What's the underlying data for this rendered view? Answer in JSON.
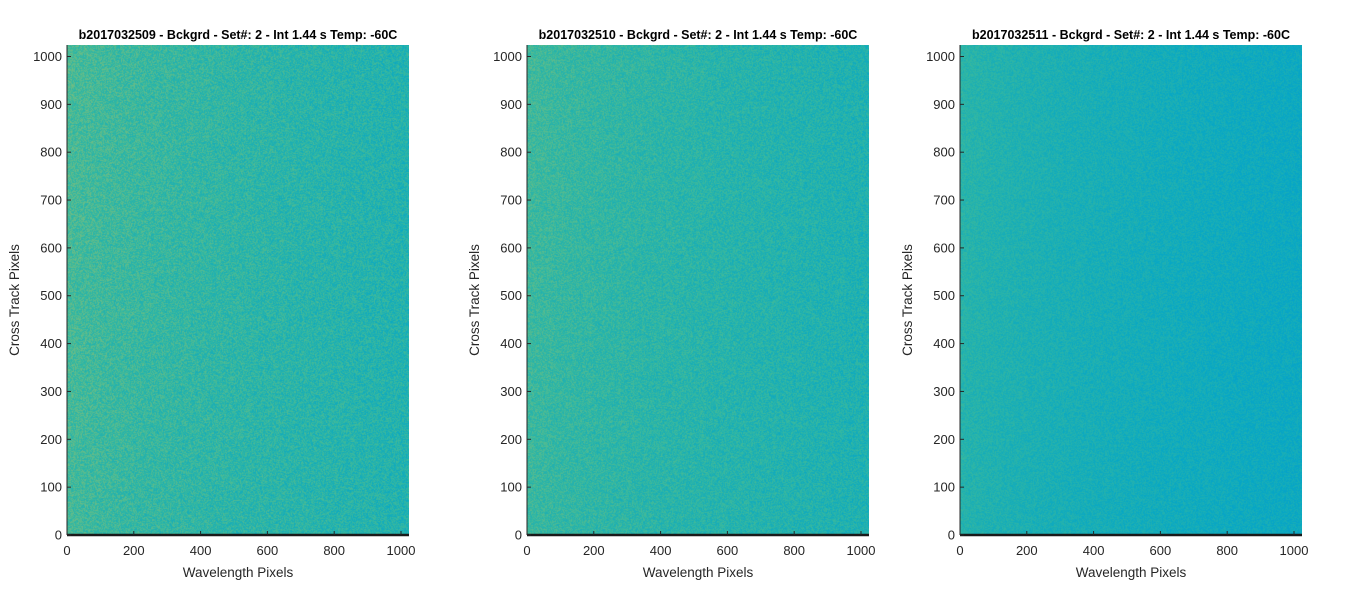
{
  "chart_data": [
    {
      "type": "heatmap",
      "title": "b2017032509 - Bckgrd - Set#: 2 - Int 1.44 s Temp: -60C",
      "xlabel": "Wavelength Pixels",
      "ylabel": "Cross Track Pixels",
      "xlim": [
        0,
        1024
      ],
      "ylim": [
        0,
        1024
      ],
      "xticks": [
        0,
        200,
        400,
        600,
        800,
        1000
      ],
      "yticks": [
        0,
        100,
        200,
        300,
        400,
        500,
        600,
        700,
        800,
        900,
        1000
      ],
      "colormap": "parula",
      "intensity_gradient": {
        "left": 0.62,
        "right": 0.54,
        "noise": 0.08
      },
      "grid": false
    },
    {
      "type": "heatmap",
      "title": "b2017032510 - Bckgrd - Set#: 2 - Int 1.44 s Temp: -60C",
      "xlabel": "Wavelength Pixels",
      "ylabel": "Cross Track Pixels",
      "xlim": [
        0,
        1024
      ],
      "ylim": [
        0,
        1024
      ],
      "xticks": [
        0,
        200,
        400,
        600,
        800,
        1000
      ],
      "yticks": [
        0,
        100,
        200,
        300,
        400,
        500,
        600,
        700,
        800,
        900,
        1000
      ],
      "colormap": "parula",
      "intensity_gradient": {
        "left": 0.6,
        "right": 0.53,
        "noise": 0.07
      },
      "grid": false
    },
    {
      "type": "heatmap",
      "title": "b2017032511 - Bckgrd - Set#: 2 - Int 1.44 s Temp: -60C",
      "xlabel": "Wavelength Pixels",
      "ylabel": "Cross Track Pixels",
      "xlim": [
        0,
        1024
      ],
      "ylim": [
        0,
        1024
      ],
      "xticks": [
        0,
        200,
        400,
        600,
        800,
        1000
      ],
      "yticks": [
        0,
        100,
        200,
        300,
        400,
        500,
        600,
        700,
        800,
        900,
        1000
      ],
      "colormap": "parula",
      "intensity_gradient": {
        "left": 0.55,
        "right": 0.47,
        "noise": 0.05
      },
      "grid": false
    }
  ]
}
